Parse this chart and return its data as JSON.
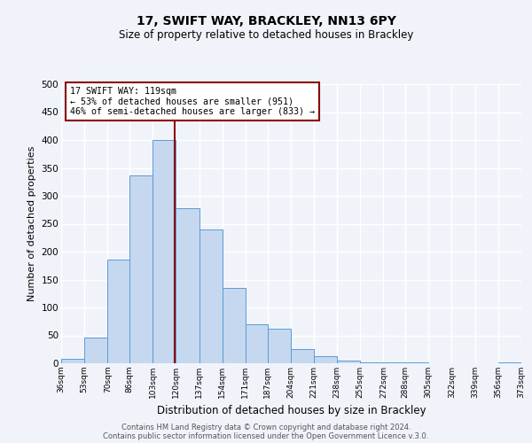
{
  "title": "17, SWIFT WAY, BRACKLEY, NN13 6PY",
  "subtitle": "Size of property relative to detached houses in Brackley",
  "xlabel": "Distribution of detached houses by size in Brackley",
  "ylabel": "Number of detached properties",
  "bar_color": "#c5d8f0",
  "bar_edge_color": "#5b9bd5",
  "background_color": "#f0f4fa",
  "grid_color": "#ffffff",
  "vline_x": 119,
  "vline_color": "#8b0000",
  "bin_edges": [
    36,
    53,
    70,
    86,
    103,
    120,
    137,
    154,
    171,
    187,
    204,
    221,
    238,
    255,
    272,
    288,
    305,
    322,
    339,
    356,
    373
  ],
  "bin_counts": [
    8,
    46,
    185,
    337,
    400,
    277,
    240,
    135,
    70,
    62,
    26,
    12,
    5,
    1,
    1,
    1,
    0,
    0,
    0,
    2
  ],
  "ylim": [
    0,
    500
  ],
  "yticks": [
    0,
    50,
    100,
    150,
    200,
    250,
    300,
    350,
    400,
    450,
    500
  ],
  "annotation_title": "17 SWIFT WAY: 119sqm",
  "annotation_line1": "← 53% of detached houses are smaller (951)",
  "annotation_line2": "46% of semi-detached houses are larger (833) →",
  "annotation_box_color": "#ffffff",
  "annotation_box_edge_color": "#8b0000",
  "footer_line1": "Contains HM Land Registry data © Crown copyright and database right 2024.",
  "footer_line2": "Contains public sector information licensed under the Open Government Licence v.3.0.",
  "tick_labels": [
    "36sqm",
    "53sqm",
    "70sqm",
    "86sqm",
    "103sqm",
    "120sqm",
    "137sqm",
    "154sqm",
    "171sqm",
    "187sqm",
    "204sqm",
    "221sqm",
    "238sqm",
    "255sqm",
    "272sqm",
    "288sqm",
    "305sqm",
    "322sqm",
    "339sqm",
    "356sqm",
    "373sqm"
  ]
}
